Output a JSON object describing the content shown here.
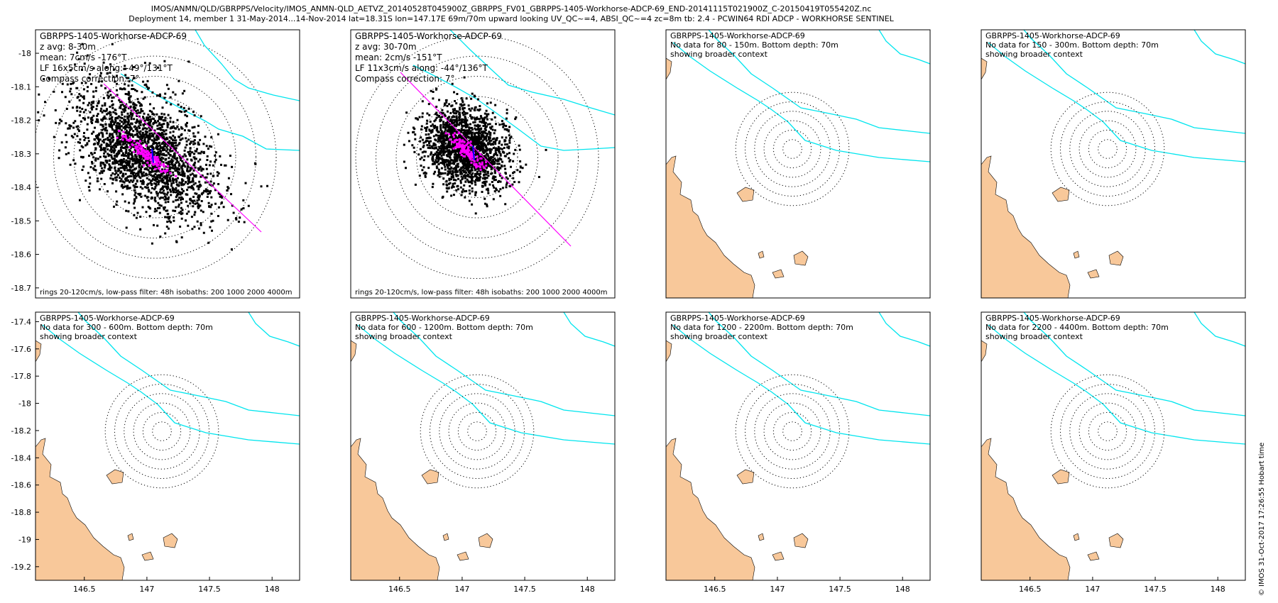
{
  "header": {
    "line1": "IMOS/ANMN/QLD/GBRPPS/Velocity/IMOS_ANMN-QLD_AETVZ_20140528T045900Z_GBRPPS_FV01_GBRPPS-1405-Workhorse-ADCP-69_END-20141115T021900Z_C-20150419T055420Z.nc",
    "line2": "Deployment 14, member 1 31-May-2014...14-Nov-2014 lat=18.31S lon=147.17E 69m/70m upward looking UV_QC~=4, ABSI_QC~=4 zc=8m tb: 2.4 - PCWIN64 RDI ADCP - WORKHORSE SENTINEL"
  },
  "credit": "© IMOS 31-Oct-2017 17:26:55 Hobart time",
  "colors": {
    "scatter": "#000000",
    "lowpass": "#ff00ff",
    "major_axis": "#ff00ff",
    "mean_arrow": "#0000ff",
    "isobath": "#00e5ee",
    "land": "#f8c89a",
    "rings": "#000000"
  },
  "chart_data": [
    {
      "type": "scatter",
      "title": "GBRPPS-1405-Workhorse-ADCP-69",
      "annotations": [
        "z avg: 8-30m",
        "mean: 7cm/s -176°T",
        "LF 16x5cm/s along: -49°/131°T",
        "Compass correction: 7°"
      ],
      "footer": "rings 20-120cm/s, low-pass filter: 48h isobaths: 200 1000 2000 4000m",
      "xlim": [
        146.1,
        148.2
      ],
      "ylim": [
        -18.73,
        -17.93
      ],
      "yticks": [
        -18,
        -18.1,
        -18.2,
        -18.3,
        -18.4,
        -18.5,
        -18.6,
        -18.7
      ],
      "center": [
        147.17,
        -18.31
      ],
      "rings_cm_s": [
        20,
        40,
        60,
        80,
        100,
        120
      ],
      "mean_cm_s": 7,
      "mean_dir_degT": -176,
      "lf_major_cm_s": 16,
      "lf_minor_cm_s": 5,
      "lf_axis_degT": 131
    },
    {
      "type": "scatter",
      "title": "GBRPPS-1405-Workhorse-ADCP-69",
      "annotations": [
        "z avg: 30-70m",
        "mean: 2cm/s -151°T",
        "LF 11x3cm/s along: -44°/136°T",
        "Compass correction: 7°"
      ],
      "footer": "rings 20-120cm/s, low-pass filter: 48h isobaths: 200 1000 2000 4000m",
      "xlim": [
        146.1,
        148.2
      ],
      "ylim": [
        -18.73,
        -17.93
      ],
      "center": [
        147.17,
        -18.31
      ],
      "rings_cm_s": [
        20,
        40,
        60,
        80,
        100,
        120
      ],
      "mean_cm_s": 2,
      "mean_dir_degT": -151,
      "lf_major_cm_s": 11,
      "lf_minor_cm_s": 3,
      "lf_axis_degT": 136
    },
    {
      "type": "map",
      "title": "GBRPPS-1405-Workhorse-ADCP-69",
      "annotations": [
        "No data for 80 - 150m. Bottom depth: 70m",
        "showing broader context"
      ]
    },
    {
      "type": "map",
      "title": "GBRPPS-1405-Workhorse-ADCP-69",
      "annotations": [
        "No data for 150 - 300m. Bottom depth: 70m",
        "showing broader context"
      ]
    },
    {
      "type": "map",
      "title": "GBRPPS-1405-Workhorse-ADCP-69",
      "annotations": [
        "No data for 300 - 600m. Bottom depth: 70m",
        "showing broader context"
      ],
      "yticks": [
        -17.4,
        -17.6,
        -17.8,
        -18,
        -18.2,
        -18.4,
        -18.6,
        -18.8,
        -19,
        -19.2
      ],
      "xticks": [
        146.5,
        147,
        147.5,
        148
      ]
    },
    {
      "type": "map",
      "title": "GBRPPS-1405-Workhorse-ADCP-69",
      "annotations": [
        "No data for 600 - 1200m. Bottom depth: 70m",
        "showing broader context"
      ],
      "xticks": [
        146.5,
        147,
        147.5,
        148
      ]
    },
    {
      "type": "map",
      "title": "GBRPPS-1405-Workhorse-ADCP-69",
      "annotations": [
        "No data for 1200 - 2200m. Bottom depth: 70m",
        "showing broader context"
      ],
      "xticks": [
        146.5,
        147,
        147.5,
        148
      ]
    },
    {
      "type": "map",
      "title": "GBRPPS-1405-Workhorse-ADCP-69",
      "annotations": [
        "No data for 2200 - 4400m. Bottom depth: 70m",
        "showing broader context"
      ],
      "xticks": [
        146.5,
        147,
        147.5,
        148
      ]
    }
  ]
}
